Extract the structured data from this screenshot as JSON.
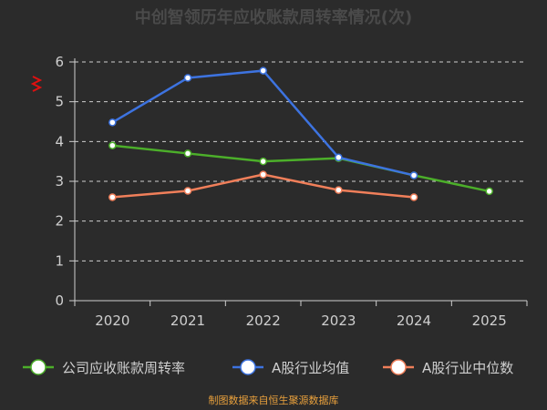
{
  "chart_data": {
    "type": "line",
    "title": "中创智领历年应收账款周转率情况(次)",
    "x": [
      "2020",
      "2021",
      "2022",
      "2023",
      "2024",
      "2025"
    ],
    "ylim": [
      0,
      6
    ],
    "yticks": [
      "0",
      "1",
      "2",
      "3",
      "4",
      "5",
      "6"
    ],
    "grid": true,
    "legend_position": "bottom",
    "series": [
      {
        "name": "公司应收账款周转率",
        "color": "#4caf2a",
        "values": [
          3.9,
          3.7,
          3.5,
          3.58,
          3.15,
          2.75
        ]
      },
      {
        "name": "A股行业均值",
        "color": "#3d73e0",
        "values": [
          4.48,
          5.6,
          5.78,
          3.6,
          3.15,
          null
        ]
      },
      {
        "name": "A股行业中位数",
        "color": "#f07f5a",
        "values": [
          2.6,
          2.76,
          3.17,
          2.78,
          2.6,
          null
        ]
      }
    ],
    "source": "制图数据来自恒生聚源数据库"
  }
}
